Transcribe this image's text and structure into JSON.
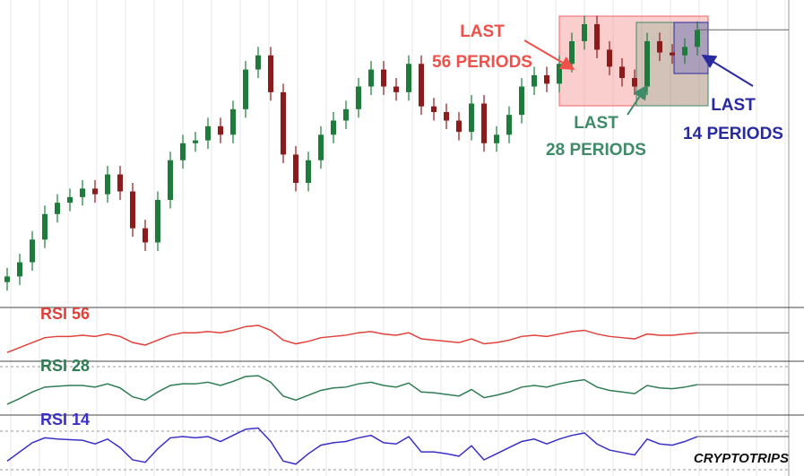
{
  "chart_data": [
    {
      "type": "candlestick",
      "up_color": "#1e7b3c",
      "down_color": "#8c1c1c",
      "ylim": [
        -5,
        100
      ],
      "open": [
        3,
        5,
        10,
        18,
        27,
        31,
        33,
        36,
        34,
        41,
        35,
        22,
        17,
        32,
        46,
        52,
        53,
        58,
        55,
        64,
        78,
        83,
        70,
        48,
        38,
        46,
        55,
        60,
        64,
        72,
        78,
        72,
        70,
        80,
        65,
        63,
        60,
        56,
        66,
        52,
        55,
        62,
        72,
        76,
        73,
        80,
        88,
        94,
        85,
        79,
        75,
        72,
        88,
        84,
        83,
        86
      ],
      "high": [
        8,
        13,
        21,
        30,
        34,
        36,
        39,
        39,
        44,
        44,
        38,
        25,
        35,
        49,
        55,
        56,
        61,
        61,
        67,
        81,
        86,
        86,
        73,
        51,
        49,
        58,
        63,
        67,
        75,
        81,
        81,
        75,
        83,
        83,
        68,
        66,
        63,
        69,
        69,
        58,
        65,
        75,
        79,
        79,
        83,
        91,
        97,
        97,
        88,
        82,
        78,
        91,
        91,
        87,
        89,
        95
      ],
      "low": [
        0,
        2,
        7,
        15,
        24,
        28,
        30,
        31,
        31,
        32,
        19,
        14,
        14,
        29,
        43,
        49,
        50,
        52,
        52,
        61,
        75,
        67,
        45,
        35,
        35,
        43,
        52,
        57,
        61,
        69,
        69,
        67,
        67,
        62,
        60,
        57,
        53,
        53,
        49,
        49,
        52,
        59,
        69,
        70,
        70,
        77,
        85,
        82,
        76,
        72,
        69,
        69,
        81,
        80,
        80,
        83
      ],
      "close": [
        5,
        10,
        18,
        27,
        31,
        33,
        36,
        34,
        41,
        35,
        22,
        17,
        32,
        46,
        52,
        53,
        58,
        55,
        64,
        78,
        83,
        70,
        48,
        38,
        46,
        55,
        60,
        64,
        72,
        78,
        72,
        70,
        80,
        65,
        63,
        60,
        56,
        66,
        52,
        55,
        62,
        72,
        76,
        73,
        80,
        88,
        94,
        85,
        79,
        75,
        72,
        88,
        84,
        83,
        86,
        92
      ],
      "annotations": [
        {
          "lines": [
            "LAST",
            "56 PERIODS"
          ],
          "color": "#f0504a"
        },
        {
          "lines": [
            "LAST",
            "28 PERIODS"
          ],
          "color": "#3f8a68"
        },
        {
          "lines": [
            "LAST",
            "14 PERIODS"
          ],
          "color": "#2a2aa0"
        }
      ]
    },
    {
      "type": "line",
      "title": "RSI 56",
      "color": "#e0413a",
      "ylim": [
        35,
        70
      ],
      "values": [
        40,
        44,
        48,
        52,
        53,
        53,
        54,
        53,
        55,
        53,
        48,
        46,
        50,
        54,
        56,
        56,
        57,
        56,
        58,
        61,
        62,
        58,
        50,
        47,
        49,
        52,
        53,
        54,
        56,
        57,
        55,
        54,
        56,
        51,
        50,
        49,
        48,
        51,
        47,
        48,
        50,
        53,
        54,
        53,
        55,
        57,
        58,
        55,
        53,
        52,
        51,
        55,
        54,
        54,
        55,
        56
      ]
    },
    {
      "type": "line",
      "title": "RSI 28",
      "color": "#2f7d55",
      "ylim": [
        25,
        80
      ],
      "values": [
        35,
        42,
        50,
        56,
        57,
        58,
        58,
        56,
        60,
        55,
        44,
        40,
        50,
        58,
        60,
        60,
        62,
        58,
        63,
        69,
        70,
        62,
        45,
        40,
        46,
        52,
        55,
        56,
        60,
        62,
        58,
        56,
        61,
        50,
        49,
        47,
        45,
        53,
        43,
        46,
        50,
        56,
        58,
        56,
        60,
        63,
        65,
        56,
        52,
        50,
        48,
        58,
        55,
        54,
        56,
        59
      ]
    },
    {
      "type": "line",
      "title": "RSI 14",
      "color": "#3a30c8",
      "ylim": [
        10,
        95
      ],
      "values": [
        30,
        45,
        60,
        68,
        66,
        65,
        64,
        58,
        66,
        52,
        32,
        28,
        50,
        68,
        70,
        68,
        70,
        62,
        72,
        82,
        84,
        62,
        30,
        25,
        42,
        56,
        60,
        62,
        68,
        72,
        60,
        58,
        70,
        45,
        45,
        42,
        38,
        55,
        32,
        42,
        52,
        62,
        66,
        58,
        66,
        72,
        76,
        58,
        48,
        44,
        40,
        66,
        58,
        56,
        62,
        70
      ]
    }
  ],
  "watermark": "CRYPTOTRIPS"
}
